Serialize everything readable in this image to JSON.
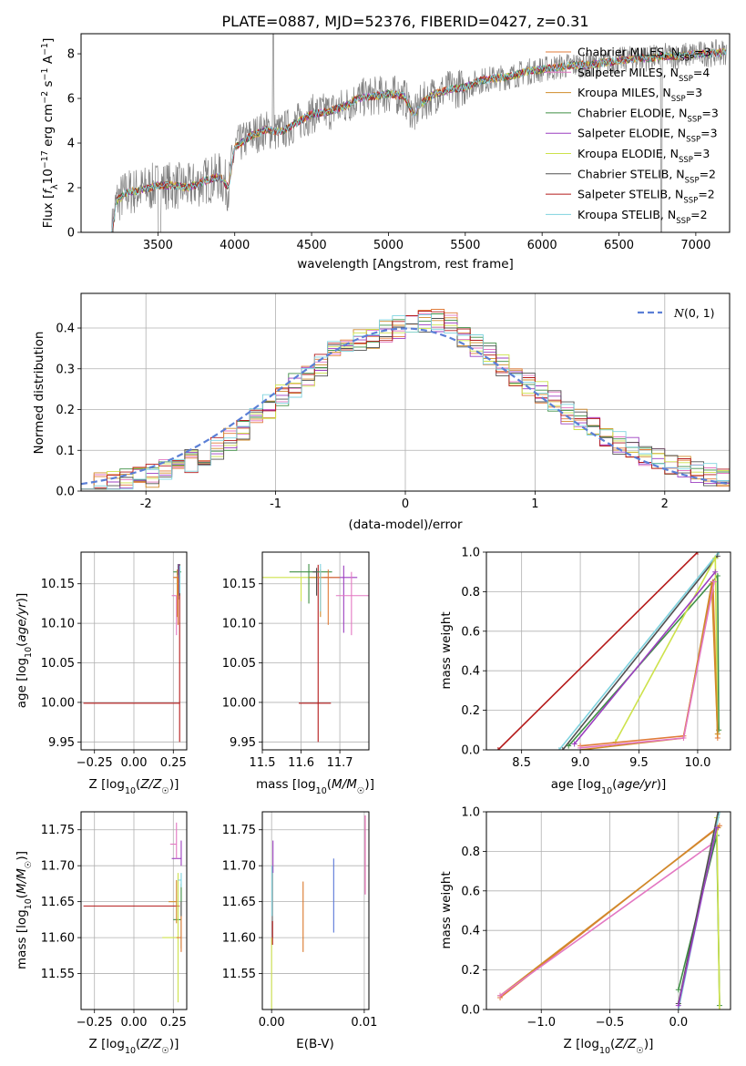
{
  "figure": {
    "title": "PLATE=0887, MJD=52376, FIBERID=0427, z=0.31"
  },
  "palette": {
    "Chabrier MILES": "#e07b39",
    "Salpeter MILES": "#e377c2",
    "Kroupa MILES": "#d08b2a",
    "Chabrier ELODIE": "#3f8f45",
    "Salpeter ELODIE": "#9c3fc0",
    "Kroupa ELODIE": "#cde24b",
    "Chabrier STELIB": "#505050",
    "Salpeter STELIB": "#b51a1a",
    "Kroupa STELIB": "#7fd3df",
    "observed": "#808080",
    "normal": "#5b7fd6",
    "ebv_blue": "#5b78d8",
    "ebv_orange": "#d9782a",
    "ebv_pink": "#e05aa8",
    "ebv_gray": "#7f7f7f"
  },
  "chart_data": [
    {
      "id": "spectrum",
      "type": "line",
      "title": "PLATE=0887, MJD=52376, FIBERID=0427, z=0.31",
      "xlabel": "wavelength [Angstrom, rest frame]",
      "ylabel": "Flux [f_λ 10^-17 erg cm^-2 s^-1 A^-1]",
      "xlim": [
        3000,
        7220
      ],
      "ylim": [
        0,
        8.9
      ],
      "xticks": [
        3500,
        4000,
        4500,
        5000,
        5500,
        6000,
        6500,
        7000
      ],
      "yticks": [
        0,
        2,
        4,
        6,
        8
      ],
      "grid": false,
      "legend_position": "right",
      "spectrum_knots_x": [
        3200,
        3230,
        3300,
        3400,
        3500,
        3600,
        3700,
        3800,
        3900,
        3960,
        4000,
        4100,
        4200,
        4300,
        4400,
        4500,
        4600,
        4700,
        4800,
        4900,
        5000,
        5100,
        5170,
        5200,
        5300,
        5400,
        5500,
        5600,
        5700,
        5800,
        5900,
        6000,
        6100,
        6200,
        6300,
        6400,
        6500,
        6600,
        6700,
        6800,
        6900,
        7000,
        7100,
        7200
      ],
      "spectrum_knots_y": [
        0,
        1.4,
        1.8,
        1.9,
        2.1,
        2.1,
        2.0,
        2.3,
        2.5,
        2.0,
        3.8,
        4.3,
        4.6,
        4.5,
        4.9,
        5.3,
        5.4,
        5.6,
        6.0,
        6.1,
        6.2,
        6.1,
        5.2,
        5.7,
        6.2,
        6.4,
        6.5,
        6.8,
        6.9,
        7.0,
        7.2,
        7.3,
        7.4,
        7.5,
        7.5,
        7.6,
        7.7,
        7.8,
        7.8,
        7.9,
        7.9,
        8.0,
        8.0,
        8.1
      ],
      "series": [
        {
          "name": "Chabrier MILES, N_SSP=3"
        },
        {
          "name": "Salpeter MILES, N_SSP=4"
        },
        {
          "name": "Kroupa MILES, N_SSP=3"
        },
        {
          "name": "Chabrier ELODIE, N_SSP=3"
        },
        {
          "name": "Salpeter ELODIE, N_SSP=3"
        },
        {
          "name": "Kroupa ELODIE, N_SSP=3"
        },
        {
          "name": "Chabrier STELIB, N_SSP=2"
        },
        {
          "name": "Salpeter STELIB, N_SSP=2"
        },
        {
          "name": "Kroupa STELIB, N_SSP=2"
        }
      ]
    },
    {
      "id": "residuals",
      "type": "line",
      "xlabel": "(data-model)/error",
      "ylabel": "Normed distribution",
      "xlim": [
        -2.5,
        2.5
      ],
      "ylim": [
        0,
        0.485
      ],
      "xticks": [
        -2,
        -1,
        0,
        1,
        2
      ],
      "yticks": [
        0.0,
        0.1,
        0.2,
        0.3,
        0.4
      ],
      "grid": true,
      "legend_position": "top-right",
      "legend": "N(0,1)",
      "bin_width": 0.1,
      "histogram_envelope_x": [
        -2.5,
        -2.0,
        -1.5,
        -1.0,
        -0.5,
        0.0,
        0.3,
        0.5,
        1.0,
        1.5,
        2.0,
        2.5
      ],
      "histogram_envelope_y": [
        0.015,
        0.03,
        0.09,
        0.22,
        0.35,
        0.41,
        0.42,
        0.37,
        0.25,
        0.14,
        0.07,
        0.025
      ]
    },
    {
      "id": "age_vs_Z",
      "type": "scatter",
      "xlabel": "Z [log10(Z/Z☉)]",
      "ylabel": "age [log10(age/yr)]",
      "xlim": [
        -0.335,
        0.335
      ],
      "ylim": [
        9.94,
        10.19
      ],
      "xticks": [
        -0.25,
        0.0,
        0.25
      ],
      "xticklabels": [
        "−0.25",
        "0.00",
        "0.25"
      ],
      "yticks": [
        9.95,
        10.0,
        10.05,
        10.1,
        10.15
      ],
      "grid": true,
      "points": [
        {
          "series": "Salpeter STELIB",
          "x": 0.29,
          "xerr": [
            0.61,
            0.0
          ],
          "y": 9.999,
          "yerr": [
            0.049,
            0.175
          ]
        },
        {
          "series": "Chabrier ELODIE",
          "x": 0.28,
          "xerr": [
            0.03,
            0.02
          ],
          "y": 10.165,
          "yerr": [
            0.01,
            0.01
          ]
        },
        {
          "series": "Kroupa MILES",
          "x": 0.275,
          "xerr": [
            0.025,
            0.02
          ],
          "y": 10.158,
          "yerr": [
            0.05,
            0.01
          ]
        },
        {
          "series": "Salpeter MILES",
          "x": 0.27,
          "xerr": [
            0.03,
            0.0
          ],
          "y": 10.135,
          "yerr": [
            0.05,
            0.0
          ]
        },
        {
          "series": "Kroupa ELODIE",
          "x": 0.285,
          "xerr": [
            0.01,
            0.0
          ],
          "y": 10.16,
          "yerr": [
            0.03,
            0.005
          ]
        },
        {
          "series": "Chabrier STELIB",
          "x": 0.29,
          "xerr": [
            0.0,
            0.0
          ],
          "y": 10.165,
          "yerr": [
            0.03,
            0.01
          ]
        },
        {
          "series": "Kroupa STELIB",
          "x": 0.292,
          "xerr": [
            0.0,
            0.0
          ],
          "y": 10.168,
          "yerr": [
            0.03,
            0.005
          ]
        },
        {
          "series": "Salpeter ELODIE",
          "x": 0.283,
          "xerr": [
            0.0,
            0.0
          ],
          "y": 10.17,
          "yerr": [
            0.04,
            0.005
          ]
        },
        {
          "series": "Chabrier MILES",
          "x": 0.28,
          "xerr": [
            0.03,
            0.0
          ],
          "y": 10.158,
          "yerr": [
            0.06,
            0.0
          ]
        }
      ]
    },
    {
      "id": "age_vs_mass",
      "type": "scatter",
      "xlabel": "mass [log10(M/M☉)]",
      "xlim": [
        11.5,
        11.775
      ],
      "ylim": [
        9.94,
        10.19
      ],
      "xticks": [
        11.5,
        11.6,
        11.7
      ],
      "yticks": [
        9.95,
        10.0,
        10.05,
        10.1,
        10.15
      ],
      "grid": true,
      "points": [
        {
          "series": "Salpeter STELIB",
          "x": 11.644,
          "xerr": [
            0.05,
            0.033
          ],
          "y": 9.999,
          "yerr": [
            0.049,
            0.175
          ]
        },
        {
          "series": "Kroupa ELODIE",
          "x": 11.6,
          "xerr": [
            0.1,
            0.08
          ],
          "y": 10.158,
          "yerr": [
            0.03,
            0.0
          ]
        },
        {
          "series": "Chabrier ELODIE",
          "x": 11.62,
          "xerr": [
            0.05,
            0.06
          ],
          "y": 10.165,
          "yerr": [
            0.04,
            0.01
          ]
        },
        {
          "series": "Kroupa MILES",
          "x": 11.65,
          "xerr": [
            0.03,
            0.05
          ],
          "y": 10.158,
          "yerr": [
            0.05,
            0.01
          ]
        },
        {
          "series": "Salpeter ELODIE",
          "x": 11.71,
          "xerr": [
            0.05,
            0.035
          ],
          "y": 10.158,
          "yerr": [
            0.07,
            0.015
          ]
        },
        {
          "series": "Salpeter MILES",
          "x": 11.73,
          "xerr": [
            0.04,
            0.05
          ],
          "y": 10.135,
          "yerr": [
            0.05,
            0.03
          ]
        },
        {
          "series": "Chabrier MILES",
          "x": 11.67,
          "xerr": [
            0.03,
            0.03
          ],
          "y": 10.158,
          "yerr": [
            0.06,
            0.01
          ]
        },
        {
          "series": "Kroupa STELIB",
          "x": 11.65,
          "xerr": [
            0.0,
            0.0
          ],
          "y": 10.165,
          "yerr": [
            0.05,
            0.01
          ]
        },
        {
          "series": "Chabrier STELIB",
          "x": 11.64,
          "xerr": [
            0.01,
            0.0
          ],
          "y": 10.165,
          "yerr": [
            0.03,
            0.005
          ]
        }
      ]
    },
    {
      "id": "massweight_vs_age",
      "type": "line",
      "xlabel": "age [log10(age/yr)]",
      "ylabel": "mass weight",
      "xlim": [
        8.2,
        10.28
      ],
      "ylim": [
        0,
        1.0
      ],
      "xticks": [
        8.5,
        9.0,
        9.5,
        10.0
      ],
      "yticks": [
        0.0,
        0.2,
        0.4,
        0.6,
        0.8,
        1.0
      ],
      "grid": true,
      "series": [
        {
          "name": "Salpeter STELIB",
          "x": [
            8.3,
            10.0
          ],
          "y": [
            0.0,
            1.0
          ]
        },
        {
          "name": "Kroupa STELIB",
          "x": [
            8.82,
            10.18
          ],
          "y": [
            0.0,
            1.0
          ]
        },
        {
          "name": "Chabrier STELIB",
          "x": [
            8.85,
            10.17
          ],
          "y": [
            0.0,
            0.98
          ]
        },
        {
          "name": "Chabrier ELODIE",
          "x": [
            8.9,
            10.17,
            10.18
          ],
          "y": [
            0.02,
            0.88,
            0.1
          ]
        },
        {
          "name": "Kroupa ELODIE",
          "x": [
            9.3,
            10.15,
            10.17
          ],
          "y": [
            0.04,
            0.97,
            0.08
          ]
        },
        {
          "name": "Chabrier MILES",
          "x": [
            9.0,
            9.88,
            10.13,
            10.17
          ],
          "y": [
            0.02,
            0.07,
            0.85,
            0.06
          ]
        },
        {
          "name": "Kroupa MILES",
          "x": [
            9.0,
            9.88,
            10.12,
            10.17
          ],
          "y": [
            0.0,
            0.06,
            0.84,
            0.08
          ]
        },
        {
          "name": "Salpeter MILES",
          "x": [
            9.0,
            9.88,
            10.14
          ],
          "y": [
            0.01,
            0.06,
            0.85
          ]
        },
        {
          "name": "Salpeter ELODIE",
          "x": [
            8.95,
            10.15
          ],
          "y": [
            0.03,
            0.9
          ]
        }
      ]
    },
    {
      "id": "mass_vs_Z",
      "type": "scatter",
      "xlabel": "Z [log10(Z/Z☉)]",
      "ylabel": "mass [log10(M/M☉)]",
      "xlim": [
        -0.335,
        0.335
      ],
      "ylim": [
        11.5,
        11.775
      ],
      "xticks": [
        -0.25,
        0.0,
        0.25
      ],
      "xticklabels": [
        "−0.25",
        "0.00",
        "0.25"
      ],
      "yticks": [
        11.55,
        11.6,
        11.65,
        11.7,
        11.75
      ],
      "grid": true,
      "points": [
        {
          "series": "Salpeter STELIB",
          "x": 0.29,
          "xerr": [
            0.61,
            0.0
          ],
          "y": 11.644,
          "yerr": [
            0.0,
            0.0
          ]
        },
        {
          "series": "Salpeter ELODIE",
          "x": 0.3,
          "xerr": [
            0.06,
            0.0
          ],
          "y": 11.71,
          "yerr": [
            0.01,
            0.025
          ]
        },
        {
          "series": "Salpeter MILES",
          "x": 0.27,
          "xerr": [
            0.04,
            0.0
          ],
          "y": 11.73,
          "yerr": [
            0.02,
            0.03
          ]
        },
        {
          "series": "Chabrier ELODIE",
          "x": 0.3,
          "xerr": [
            0.05,
            0.0
          ],
          "y": 11.625,
          "yerr": [
            0.04,
            0.05
          ]
        },
        {
          "series": "Kroupa ELODIE",
          "x": 0.28,
          "xerr": [
            0.1,
            0.0
          ],
          "y": 11.6,
          "yerr": [
            0.09,
            0.09
          ]
        },
        {
          "series": "Kroupa MILES",
          "x": 0.27,
          "xerr": [
            0.05,
            0.0
          ],
          "y": 11.65,
          "yerr": [
            0.03,
            0.03
          ]
        },
        {
          "series": "Chabrier MILES",
          "x": 0.3,
          "xerr": [
            0.03,
            0.0
          ],
          "y": 11.6,
          "yerr": [
            0.02,
            0.03
          ]
        },
        {
          "series": "Kroupa STELIB",
          "x": 0.3,
          "xerr": [
            0.02,
            0.0
          ],
          "y": 11.68,
          "yerr": [
            0.01,
            0.01
          ]
        },
        {
          "series": "Chabrier STELIB",
          "x": 0.3,
          "xerr": [
            0.0,
            0.0
          ],
          "y": 11.64,
          "yerr": [
            0.01,
            0.01
          ]
        }
      ]
    },
    {
      "id": "mass_vs_ebv",
      "type": "scatter",
      "xlabel": "E(B-V)",
      "xlim": [
        -0.001,
        0.0105
      ],
      "ylim": [
        11.5,
        11.775
      ],
      "xticks": [
        0.0,
        0.01
      ],
      "xticklabels": [
        "0.00",
        "0.01"
      ],
      "yticks": [
        11.55,
        11.6,
        11.65,
        11.7,
        11.75
      ],
      "grid": true,
      "vbars": [
        {
          "color_key": "ebv_blue",
          "x": 0.0067,
          "y1": 11.607,
          "y2": 11.71
        },
        {
          "color_key": "ebv_orange",
          "x": 0.0034,
          "y1": 11.58,
          "y2": 11.678
        },
        {
          "color_key": "ebv_pink",
          "x": 0.0101,
          "y1": 11.66,
          "y2": 11.77
        },
        {
          "color_key": "ebv_gray",
          "x": 0.0001,
          "y1": 11.6,
          "y2": 11.7
        },
        {
          "color_key": "Salpeter ELODIE",
          "x": 0.00015,
          "y1": 11.69,
          "y2": 11.735
        },
        {
          "color_key": "Kroupa ELODIE",
          "x": 0.0,
          "y1": 11.5,
          "y2": 11.6
        },
        {
          "color_key": "Salpeter STELIB",
          "x": 0.0001,
          "y1": 11.59,
          "y2": 11.623
        },
        {
          "color_key": "Kroupa STELIB",
          "x": 5e-05,
          "y1": 11.63,
          "y2": 11.7
        }
      ]
    },
    {
      "id": "massweight_vs_Z",
      "type": "line",
      "xlabel": "Z [log10(Z/Z☉)]",
      "ylabel": "mass weight",
      "xlim": [
        -1.4,
        0.38
      ],
      "ylim": [
        0,
        1.0
      ],
      "xticks": [
        -1.0,
        -0.5,
        0.0
      ],
      "xticklabels": [
        "−1.0",
        "−0.5",
        "0.0"
      ],
      "yticks": [
        0.0,
        0.2,
        0.4,
        0.6,
        0.8,
        1.0
      ],
      "grid": true,
      "series": [
        {
          "name": "Chabrier MILES",
          "x": [
            -1.3,
            0.3
          ],
          "y": [
            0.06,
            0.93
          ]
        },
        {
          "name": "Kroupa MILES",
          "x": [
            -1.3,
            0.29
          ],
          "y": [
            0.07,
            0.92
          ]
        },
        {
          "name": "Salpeter MILES",
          "x": [
            -1.3,
            0.25
          ],
          "y": [
            0.07,
            0.84
          ]
        },
        {
          "name": "Chabrier ELODIE",
          "x": [
            0.0,
            0.28,
            0.3
          ],
          "y": [
            0.1,
            0.88,
            0.02
          ]
        },
        {
          "name": "Kroupa ELODIE",
          "x": [
            0.0,
            0.28,
            0.3
          ],
          "y": [
            0.0,
            0.97,
            0.0
          ]
        },
        {
          "name": "Kroupa STELIB",
          "x": [
            0.0,
            0.3
          ],
          "y": [
            0.0,
            1.0
          ]
        },
        {
          "name": "Chabrier STELIB",
          "x": [
            0.0,
            0.29
          ],
          "y": [
            0.03,
            1.0
          ]
        },
        {
          "name": "Salpeter ELODIE",
          "x": [
            0.0,
            0.28
          ],
          "y": [
            0.02,
            0.92
          ]
        }
      ]
    }
  ]
}
